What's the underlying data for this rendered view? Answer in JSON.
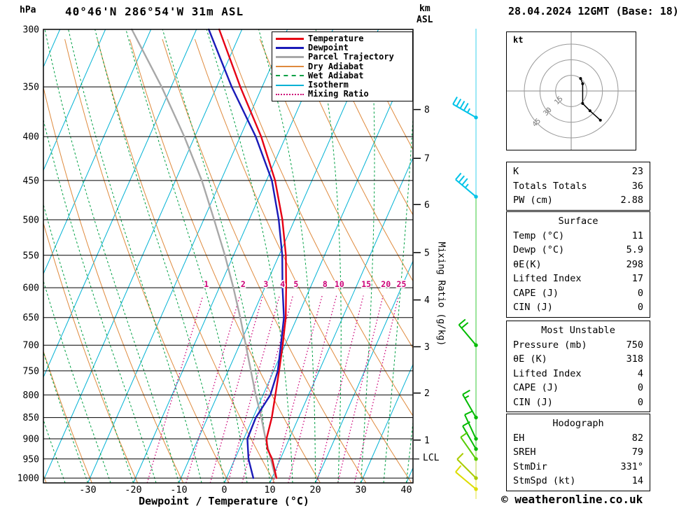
{
  "header": {
    "pressure_unit": "hPa",
    "station_title": "40°46'N 286°54'W 31m ASL",
    "km_label": "km",
    "asl_label": "ASL",
    "datetime_title": "28.04.2024 12GMT (Base: 18)"
  },
  "footer": {
    "xaxis_label": "Dewpoint / Temperature (°C)",
    "copyright": "© weatheronline.co.uk"
  },
  "colors": {
    "temperature": "#e60013",
    "dewpoint": "#1a1ab8",
    "parcel": "#a8a8a8",
    "dry_adiabat": "#df8a3d",
    "wet_adiabat": "#00a044",
    "isotherm": "#00b2d4",
    "mixing_ratio": "#cc0077",
    "grid": "#000000",
    "hodograph_ring": "#999999",
    "staff": "#9ab8a8"
  },
  "legend": [
    {
      "label": "Temperature",
      "key": "temperature",
      "style": "solid",
      "weight": 3
    },
    {
      "label": "Dewpoint",
      "key": "dewpoint",
      "style": "solid",
      "weight": 3
    },
    {
      "label": "Parcel Trajectory",
      "key": "parcel",
      "style": "solid",
      "weight": 3
    },
    {
      "label": "Dry Adiabat",
      "key": "dry_adiabat",
      "style": "solid",
      "weight": 2
    },
    {
      "label": "Wet Adiabat",
      "key": "wet_adiabat",
      "style": "dashed",
      "weight": 2
    },
    {
      "label": "Isotherm",
      "key": "isotherm",
      "style": "solid",
      "weight": 2
    },
    {
      "label": "Mixing Ratio",
      "key": "mixing_ratio",
      "style": "dotted",
      "weight": 2
    }
  ],
  "axes": {
    "pressure_ticks": [
      300,
      350,
      400,
      450,
      500,
      550,
      600,
      650,
      700,
      750,
      800,
      850,
      900,
      950,
      1000
    ],
    "temp_ticks": [
      -30,
      -20,
      -10,
      0,
      10,
      20,
      30,
      40
    ],
    "km_ticks": [
      {
        "km": 8,
        "p": 372
      },
      {
        "km": 7,
        "p": 424
      },
      {
        "km": 6,
        "p": 480
      },
      {
        "km": 5,
        "p": 546
      },
      {
        "km": 4,
        "p": 620
      },
      {
        "km": 3,
        "p": 703
      },
      {
        "km": 2,
        "p": 796
      },
      {
        "km": 1,
        "p": 903
      }
    ],
    "lcl": {
      "label": "LCL",
      "p": 950
    },
    "mixing_ratio_axis_label": "Mixing Ratio (g/kg)",
    "mixing_ratio_values": [
      1,
      2,
      3,
      4,
      5,
      8,
      10,
      15,
      20,
      25
    ]
  },
  "chart_data": {
    "type": "line",
    "subtype": "skew-t-log-p sounding",
    "pressure_axis_hpa": [
      300,
      1013
    ],
    "temperature_axis_c": [
      -40,
      41
    ],
    "series": [
      {
        "name": "Temperature",
        "color_key": "temperature",
        "points_p_t": [
          [
            1000,
            11
          ],
          [
            950,
            8.2
          ],
          [
            925,
            6.2
          ],
          [
            900,
            5.0
          ],
          [
            850,
            4.1
          ],
          [
            800,
            2.7
          ],
          [
            750,
            1.2
          ],
          [
            700,
            -0.5
          ],
          [
            650,
            -2.5
          ],
          [
            600,
            -5.3
          ],
          [
            550,
            -8.5
          ],
          [
            500,
            -12.7
          ],
          [
            450,
            -18.1
          ],
          [
            400,
            -25.4
          ],
          [
            350,
            -34.8
          ],
          [
            300,
            -45.0
          ]
        ]
      },
      {
        "name": "Dewpoint",
        "color_key": "dewpoint",
        "points_p_t": [
          [
            1000,
            5.9
          ],
          [
            950,
            3.0
          ],
          [
            900,
            0.8
          ],
          [
            850,
            0.6
          ],
          [
            800,
            1.6
          ],
          [
            750,
            0.9
          ],
          [
            700,
            -0.9
          ],
          [
            650,
            -2.9
          ],
          [
            600,
            -6.1
          ],
          [
            550,
            -9.3
          ],
          [
            500,
            -13.5
          ],
          [
            450,
            -18.8
          ],
          [
            400,
            -26.6
          ],
          [
            350,
            -36.7
          ],
          [
            300,
            -47.3
          ]
        ]
      },
      {
        "name": "Parcel Trajectory",
        "color_key": "parcel",
        "points_p_t": [
          [
            1000,
            10.8
          ],
          [
            950,
            7.9
          ],
          [
            900,
            4.8
          ],
          [
            850,
            1.8
          ],
          [
            800,
            -1.6
          ],
          [
            750,
            -5.0
          ],
          [
            700,
            -8.6
          ],
          [
            650,
            -12.5
          ],
          [
            600,
            -16.9
          ],
          [
            550,
            -21.9
          ],
          [
            500,
            -27.7
          ],
          [
            450,
            -34.2
          ],
          [
            400,
            -42.3
          ],
          [
            350,
            -52.1
          ],
          [
            300,
            -64.2
          ]
        ]
      }
    ],
    "winds": [
      {
        "p": 380,
        "dir": 300,
        "spd": 45,
        "color": "#00c3e8"
      },
      {
        "p": 470,
        "dir": 310,
        "spd": 35,
        "color": "#00c3e8"
      },
      {
        "p": 700,
        "dir": 320,
        "spd": 20,
        "color": "#00bb00"
      },
      {
        "p": 850,
        "dir": 330,
        "spd": 15,
        "color": "#00bb00"
      },
      {
        "p": 900,
        "dir": 335,
        "spd": 10,
        "color": "#00bb00"
      },
      {
        "p": 925,
        "dir": 330,
        "spd": 10,
        "color": "#00bb00"
      },
      {
        "p": 950,
        "dir": 325,
        "spd": 10,
        "color": "#55cc00"
      },
      {
        "p": 1000,
        "dir": 315,
        "spd": 10,
        "color": "#aacc00"
      },
      {
        "p": 1030,
        "dir": 310,
        "spd": 8,
        "color": "#dddd00"
      }
    ]
  },
  "hodograph": {
    "unit_label": "kt",
    "rings_kt": [
      15,
      30,
      45
    ],
    "trace_kt": [
      [
        9,
        -12
      ],
      [
        11,
        -7
      ],
      [
        11,
        12
      ],
      [
        18,
        19
      ],
      [
        28,
        28
      ]
    ]
  },
  "panels": [
    {
      "rows": [
        [
          "K",
          "23"
        ],
        [
          "Totals Totals",
          "36"
        ],
        [
          "PW (cm)",
          "2.88"
        ]
      ]
    },
    {
      "title": "Surface",
      "rows": [
        [
          "Temp (°C)",
          "11"
        ],
        [
          "Dewp (°C)",
          "5.9"
        ],
        [
          "θE(K)",
          "298"
        ],
        [
          "Lifted Index",
          "17"
        ],
        [
          "CAPE (J)",
          "0"
        ],
        [
          "CIN (J)",
          "0"
        ]
      ]
    },
    {
      "title": "Most Unstable",
      "rows": [
        [
          "Pressure (mb)",
          "750"
        ],
        [
          "θE (K)",
          "318"
        ],
        [
          "Lifted Index",
          "4"
        ],
        [
          "CAPE (J)",
          "0"
        ],
        [
          "CIN (J)",
          "0"
        ]
      ]
    },
    {
      "title": "Hodograph",
      "rows": [
        [
          "EH",
          "82"
        ],
        [
          "SREH",
          "79"
        ],
        [
          "StmDir",
          "331°"
        ],
        [
          "StmSpd (kt)",
          "14"
        ]
      ]
    }
  ]
}
